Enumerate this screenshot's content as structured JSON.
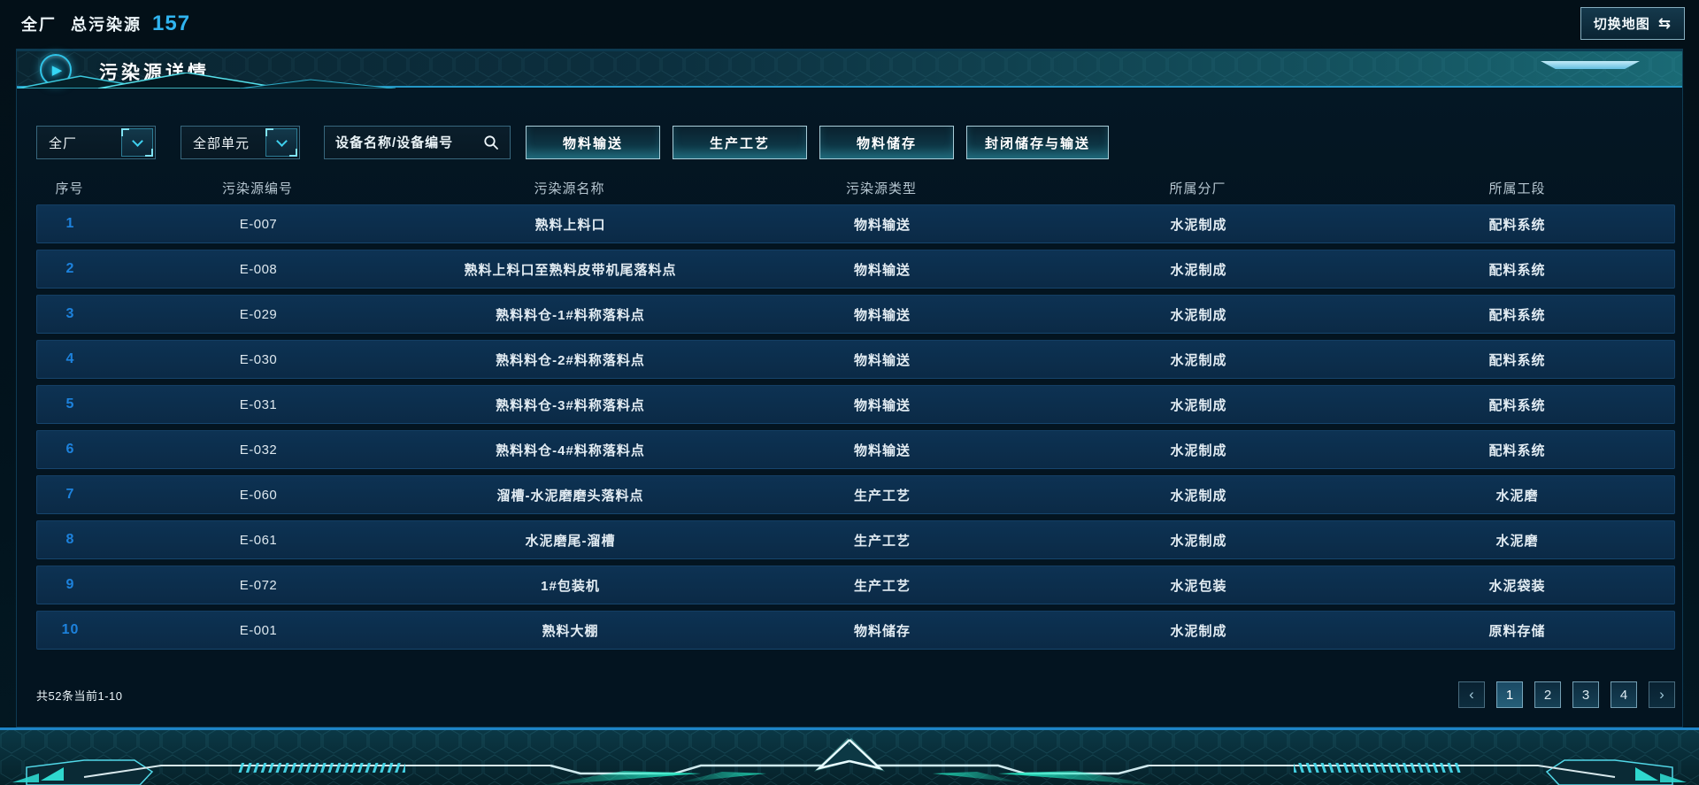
{
  "topbar": {
    "plant": "全厂",
    "total_label": "总污染源",
    "count": "157",
    "switch_map_label": "切换地图"
  },
  "panel": {
    "title": "污染源详情"
  },
  "filters": {
    "plant_select": "全厂",
    "unit_select": "全部单元",
    "search_placeholder": "设备名称/设备编号",
    "type_buttons": [
      "物料输送",
      "生产工艺",
      "物料储存",
      "封闭储存与输送"
    ]
  },
  "table": {
    "headers": [
      "序号",
      "污染源编号",
      "污染源名称",
      "污染源类型",
      "所属分厂",
      "所属工段"
    ],
    "rows": [
      [
        "1",
        "E-007",
        "熟料上料口",
        "物料输送",
        "水泥制成",
        "配料系统"
      ],
      [
        "2",
        "E-008",
        "熟料上料口至熟料皮带机尾落料点",
        "物料输送",
        "水泥制成",
        "配料系统"
      ],
      [
        "3",
        "E-029",
        "熟料料仓-1#料称落料点",
        "物料输送",
        "水泥制成",
        "配料系统"
      ],
      [
        "4",
        "E-030",
        "熟料料仓-2#料称落料点",
        "物料输送",
        "水泥制成",
        "配料系统"
      ],
      [
        "5",
        "E-031",
        "熟料料仓-3#料称落料点",
        "物料输送",
        "水泥制成",
        "配料系统"
      ],
      [
        "6",
        "E-032",
        "熟料料仓-4#料称落料点",
        "物料输送",
        "水泥制成",
        "配料系统"
      ],
      [
        "7",
        "E-060",
        "溜槽-水泥磨磨头落料点",
        "生产工艺",
        "水泥制成",
        "水泥磨"
      ],
      [
        "8",
        "E-061",
        "水泥磨尾-溜槽",
        "生产工艺",
        "水泥制成",
        "水泥磨"
      ],
      [
        "9",
        "E-072",
        "1#包装机",
        "生产工艺",
        "水泥包装",
        "水泥袋装"
      ],
      [
        "10",
        "E-001",
        "熟料大棚",
        "物料储存",
        "水泥制成",
        "原料存储"
      ]
    ]
  },
  "footer": {
    "summary": "共52条当前1-10",
    "prev_icon": "‹",
    "next_icon": "›",
    "pages": [
      "1",
      "2",
      "3",
      "4"
    ],
    "current_page": "1"
  },
  "icons": {
    "play": "▶",
    "swap_arrows": "⇆"
  },
  "colors": {
    "accent_cyan": "#2fc8ea",
    "count_blue": "#30b4f0",
    "index_blue": "#1d82dd",
    "row_bg": "#0c2d4a",
    "header_border": "#2496c4",
    "band_green": "#1fe4c2"
  }
}
